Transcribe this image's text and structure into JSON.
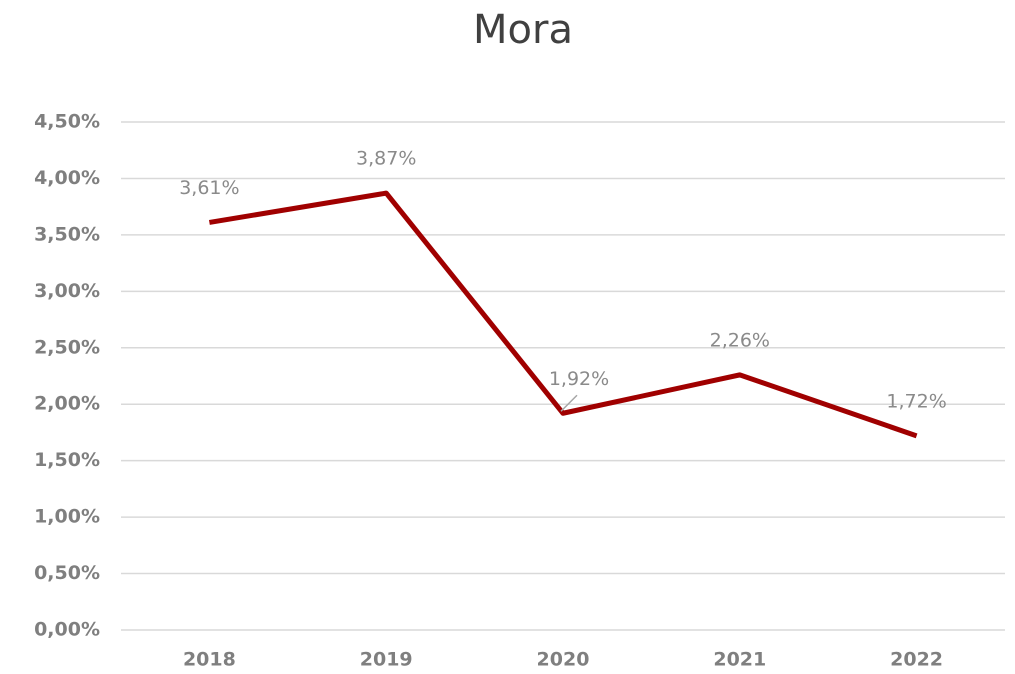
{
  "chart_data": {
    "type": "line",
    "title": "Mora",
    "categories": [
      "2018",
      "2019",
      "2020",
      "2021",
      "2022"
    ],
    "series": [
      {
        "name": "Mora",
        "color": "#a00000",
        "values": [
          3.61,
          3.87,
          1.92,
          2.26,
          1.72
        ],
        "value_labels": [
          "3,61%",
          "3,87%",
          "1,92%",
          "2,26%",
          "1,72%"
        ]
      }
    ],
    "ylim": [
      0,
      4.5
    ],
    "yticks": [
      {
        "value": 0,
        "label": "0,00%"
      },
      {
        "value": 0.5,
        "label": "0,50%"
      },
      {
        "value": 1,
        "label": "1,00%"
      },
      {
        "value": 1.5,
        "label": "1,50%"
      },
      {
        "value": 2,
        "label": "2,00%"
      },
      {
        "value": 2.5,
        "label": "2,50%"
      },
      {
        "value": 3,
        "label": "3,00%"
      },
      {
        "value": 3.5,
        "label": "3,50%"
      },
      {
        "value": 4,
        "label": "4,00%"
      },
      {
        "value": 4.5,
        "label": "4,50%"
      }
    ],
    "grid": true
  }
}
